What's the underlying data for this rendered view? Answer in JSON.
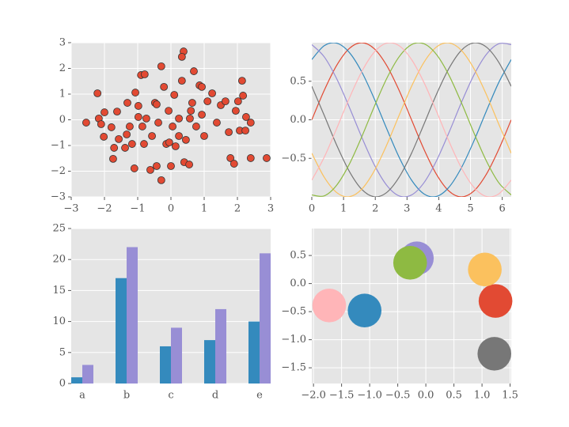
{
  "chart_data": [
    {
      "type": "scatter",
      "color": "#E24A33",
      "edgecolor": "#333333",
      "grid": true,
      "xlim": [
        -3,
        3
      ],
      "ylim": [
        -3,
        3
      ],
      "xticks": [
        {
          "value": -3,
          "label": "−3"
        },
        {
          "value": -2,
          "label": "−2"
        },
        {
          "value": -1,
          "label": "−1"
        },
        0,
        1,
        2,
        3
      ],
      "yticks": [
        {
          "value": -3,
          "label": "−3"
        },
        {
          "value": -2,
          "label": "−2"
        },
        {
          "value": -1,
          "label": "−1"
        },
        0,
        1,
        2,
        3
      ],
      "x": [
        -2.55,
        -2.21,
        -2.17,
        -2.1,
        -2.0,
        -2.02,
        -1.79,
        -1.71,
        -1.74,
        -1.62,
        -1.57,
        -1.38,
        -1.31,
        -1.24,
        -1.17,
        -1.1,
        -1.07,
        -0.98,
        -0.9,
        -0.79,
        -0.81,
        -0.74,
        -0.62,
        -0.57,
        -0.48,
        -0.43,
        -0.38,
        -0.29,
        -0.29,
        -0.21,
        -0.14,
        -0.07,
        0.0,
        0.05,
        0.1,
        0.14,
        0.24,
        0.33,
        0.38,
        0.33,
        0.4,
        0.45,
        0.55,
        0.6,
        0.64,
        0.69,
        0.76,
        0.86,
        0.93,
        1.0,
        1.1,
        1.24,
        1.38,
        1.5,
        1.64,
        1.74,
        1.79,
        1.9,
        1.95,
        2.02,
        2.07,
        2.14,
        2.17,
        2.26,
        2.4,
        2.4,
        2.24,
        2.88,
        -0.05,
        0.24,
        -0.86,
        -0.43,
        0.57,
        0.93,
        -0.98,
        -1.33
      ],
      "values": [
        -0.11,
        1.03,
        0.05,
        -0.17,
        0.29,
        -0.66,
        -0.29,
        -1.09,
        -1.52,
        0.32,
        -0.75,
        -1.09,
        0.66,
        -0.26,
        -0.94,
        -1.89,
        1.06,
        0.54,
        1.74,
        1.77,
        -0.94,
        0.05,
        -1.95,
        -0.63,
        0.66,
        -1.8,
        -0.11,
        2.08,
        -2.35,
        1.28,
        -0.94,
        0.35,
        -1.8,
        -0.26,
        0.97,
        -1.03,
        0.05,
        1.52,
        2.66,
        2.45,
        -1.65,
        -0.78,
        -1.74,
        0.35,
        0.66,
        1.89,
        -0.26,
        1.34,
        0.2,
        -0.63,
        0.72,
        1.03,
        -0.11,
        0.57,
        0.72,
        -0.48,
        -1.49,
        -1.71,
        0.35,
        0.72,
        -0.42,
        1.52,
        0.94,
        0.11,
        -0.11,
        -1.49,
        -0.42,
        -1.49,
        -0.88,
        -0.63,
        -0.26,
        0.6,
        0.05,
        1.28,
        0.11,
        -0.57
      ]
    },
    {
      "type": "line",
      "grid": true,
      "xlim": [
        0,
        6.283
      ],
      "ylim": [
        -1,
        1
      ],
      "xticks": [
        0,
        1,
        2,
        3,
        4,
        5,
        6
      ],
      "yticks": [
        {
          "value": -0.5,
          "label": "−0.5"
        },
        {
          "value": 0,
          "label": "0.0"
        },
        0.5
      ],
      "x": [
        0,
        0.393,
        0.785,
        1.178,
        1.571,
        1.963,
        2.356,
        2.749,
        3.142,
        3.534,
        3.927,
        4.32,
        4.712,
        5.105,
        5.498,
        5.89,
        6.283
      ],
      "series": [
        {
          "color": "#E24A33",
          "values": [
            0,
            0.383,
            0.707,
            0.924,
            1,
            0.924,
            0.707,
            0.383,
            0,
            -0.383,
            -0.707,
            -0.924,
            -1,
            -0.924,
            -0.707,
            -0.383,
            0
          ]
        },
        {
          "color": "#348ABD",
          "values": [
            0.782,
            0.961,
            0.994,
            0.875,
            0.623,
            0.277,
            -0.112,
            -0.484,
            -0.782,
            -0.961,
            -0.994,
            -0.875,
            -0.623,
            -0.277,
            0.112,
            0.484,
            0.782
          ]
        },
        {
          "color": "#988ED5",
          "values": [
            0.975,
            0.816,
            0.532,
            0.167,
            -0.223,
            -0.579,
            -0.847,
            -0.986,
            -0.975,
            -0.816,
            -0.532,
            -0.167,
            0.223,
            0.579,
            0.847,
            0.986,
            0.975
          ]
        },
        {
          "color": "#777777",
          "values": [
            0.434,
            0.056,
            -0.33,
            -0.666,
            -0.901,
            -0.998,
            -0.944,
            -0.746,
            -0.434,
            -0.056,
            0.33,
            0.666,
            0.901,
            0.998,
            0.944,
            0.746,
            0.434
          ]
        },
        {
          "color": "#FBC15E",
          "values": [
            -0.434,
            -0.746,
            -0.944,
            -0.998,
            -0.901,
            -0.666,
            -0.33,
            0.056,
            0.434,
            0.746,
            0.944,
            0.998,
            0.901,
            0.666,
            0.33,
            -0.056,
            -0.434
          ]
        },
        {
          "color": "#8EBA42",
          "values": [
            -0.975,
            -0.986,
            -0.847,
            -0.579,
            -0.223,
            0.167,
            0.532,
            0.816,
            0.975,
            0.986,
            0.847,
            0.579,
            0.223,
            -0.167,
            -0.532,
            -0.816,
            -0.975
          ]
        },
        {
          "color": "#FFB5B8",
          "values": [
            -0.782,
            -0.484,
            -0.112,
            0.277,
            0.623,
            0.875,
            0.994,
            0.961,
            0.782,
            0.484,
            0.112,
            -0.277,
            -0.623,
            -0.875,
            -0.994,
            -0.961,
            -0.782
          ]
        }
      ]
    },
    {
      "type": "bar",
      "grid": true,
      "ylim": [
        0,
        25
      ],
      "yticks": [
        0,
        5,
        10,
        15,
        20,
        25
      ],
      "categories": [
        "a",
        "b",
        "c",
        "d",
        "e"
      ],
      "series": [
        {
          "color": "#348ABD",
          "values": [
            1,
            17,
            6,
            7,
            10
          ]
        },
        {
          "color": "#988ED5",
          "values": [
            3,
            22,
            9,
            12,
            21
          ]
        }
      ]
    },
    {
      "type": "bubble",
      "grid": true,
      "xlim": [
        -2.03,
        1.52
      ],
      "ylim": [
        -1.78,
        0.98
      ],
      "xticks": [
        {
          "value": -2,
          "label": "−2.0"
        },
        {
          "value": -1.5,
          "label": "−1.5"
        },
        {
          "value": -1,
          "label": "−1.0"
        },
        {
          "value": -0.5,
          "label": "−0.5"
        },
        {
          "value": 0,
          "label": "0.0"
        },
        0.5,
        {
          "value": 1,
          "label": "1.0"
        },
        1.5
      ],
      "yticks": [
        0.5,
        {
          "value": 0,
          "label": "0.0"
        },
        {
          "value": -0.5,
          "label": "−0.5"
        },
        {
          "value": -1,
          "label": "−1.0"
        },
        {
          "value": -1.5,
          "label": "−1.5"
        }
      ],
      "x": [
        1.24,
        -1.09,
        -0.16,
        1.22,
        1.05,
        -0.28,
        -1.72
      ],
      "values": [
        -0.31,
        -0.48,
        0.45,
        -1.25,
        0.25,
        0.37,
        -0.39
      ],
      "sizes": [
        0.3,
        0.3,
        0.3,
        0.3,
        0.3,
        0.3,
        0.3
      ],
      "colors": [
        "#E24A33",
        "#348ABD",
        "#988ED5",
        "#777777",
        "#FBC15E",
        "#8EBA42",
        "#FFB5B8"
      ]
    }
  ]
}
